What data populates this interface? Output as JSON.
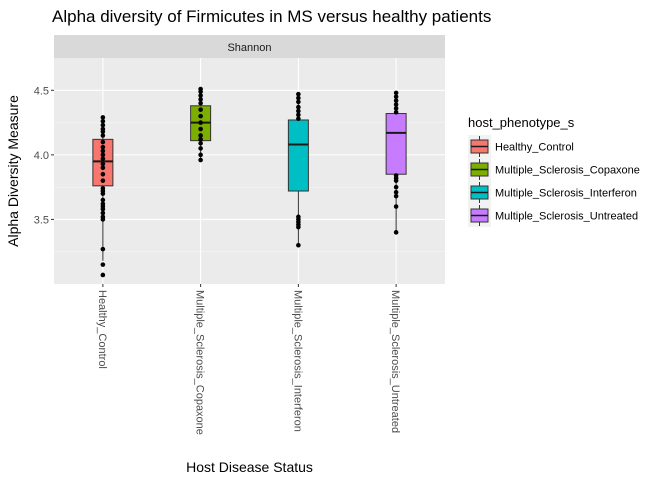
{
  "chart_data": {
    "type": "boxplot",
    "title": "Alpha diversity  of Firmicutes in MS versus healthy patients",
    "facet_label": "Shannon",
    "xlabel": "Host Disease Status",
    "ylabel": "Alpha Diversity Measure",
    "ylim": [
      3.0,
      4.75
    ],
    "y_ticks": [
      3.5,
      4.0,
      4.5
    ],
    "y_tick_labels": [
      "3.5",
      "4.0",
      "4.5"
    ],
    "categories": [
      "Healthy_Control",
      "Multiple_Sclerosis_Copaxone",
      "Multiple_Sclerosis_Interferon",
      "Multiple_Sclerosis_Untreated"
    ],
    "legend_title": "host_phenotype_s",
    "legend_position": "right",
    "grid": true,
    "series": [
      {
        "name": "Healthy_Control",
        "color": "#F8766D",
        "box": {
          "whisker_low": 3.18,
          "q1": 3.76,
          "median": 3.95,
          "q3": 4.12,
          "whisker_high": 4.27
        },
        "points": [
          3.07,
          3.15,
          3.27,
          3.5,
          3.52,
          3.55,
          3.58,
          3.6,
          3.62,
          3.65,
          3.7,
          3.72,
          3.74,
          3.8,
          3.85,
          3.9,
          3.93,
          3.97,
          4.0,
          4.03,
          4.06,
          4.1,
          4.15,
          4.18,
          4.2,
          4.23,
          4.26,
          4.29
        ]
      },
      {
        "name": "Multiple_Sclerosis_Copaxone",
        "color": "#7CAE00",
        "box": {
          "whisker_low": 3.96,
          "q1": 4.11,
          "median": 4.25,
          "q3": 4.38,
          "whisker_high": 4.51
        },
        "points": [
          3.96,
          4.0,
          4.05,
          4.09,
          4.12,
          4.15,
          4.2,
          4.25,
          4.3,
          4.35,
          4.4,
          4.43,
          4.46,
          4.49,
          4.51
        ]
      },
      {
        "name": "Multiple_Sclerosis_Interferon",
        "color": "#00BFC4",
        "box": {
          "whisker_low": 3.3,
          "q1": 3.72,
          "median": 4.08,
          "q3": 4.27,
          "whisker_high": 4.47
        },
        "points": [
          3.3,
          3.44,
          3.46,
          3.48,
          3.5,
          3.52,
          4.28,
          4.31,
          4.34,
          4.37,
          4.41,
          4.44,
          4.47
        ]
      },
      {
        "name": "Multiple_Sclerosis_Untreated",
        "color": "#C77CFF",
        "box": {
          "whisker_low": 3.4,
          "q1": 3.85,
          "median": 4.17,
          "q3": 4.32,
          "whisker_high": 4.48
        },
        "points": [
          3.4,
          3.6,
          3.68,
          3.71,
          3.75,
          3.8,
          3.82,
          3.84,
          4.33,
          4.36,
          4.39,
          4.42,
          4.45,
          4.48
        ]
      }
    ]
  }
}
